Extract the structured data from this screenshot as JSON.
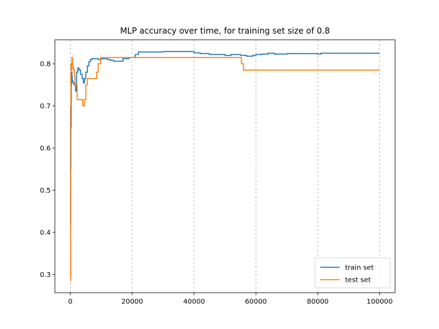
{
  "chart_data": {
    "type": "line",
    "title": "MLP accuracy over time, for training set size of 0.8",
    "xlabel": "",
    "ylabel": "",
    "xlim": [
      -5000,
      105000
    ],
    "ylim": [
      0.257,
      0.857
    ],
    "xticks": [
      0,
      20000,
      40000,
      60000,
      80000,
      100000
    ],
    "xtick_labels": [
      "0",
      "20000",
      "40000",
      "60000",
      "80000",
      "100000"
    ],
    "yticks": [
      0.3,
      0.4,
      0.5,
      0.6,
      0.7,
      0.8
    ],
    "ytick_labels": [
      "0.3",
      "0.4",
      "0.5",
      "0.6",
      "0.7",
      "0.8"
    ],
    "grid": "x-dashed",
    "legend": "lower-right",
    "series": [
      {
        "name": "train set",
        "color": "#1f77b4",
        "step": true,
        "points": [
          [
            0,
            0.42
          ],
          [
            100,
            0.7
          ],
          [
            200,
            0.65
          ],
          [
            300,
            0.75
          ],
          [
            400,
            0.78
          ],
          [
            500,
            0.77
          ],
          [
            600,
            0.76
          ],
          [
            800,
            0.755
          ],
          [
            1200,
            0.75
          ],
          [
            1700,
            0.735
          ],
          [
            2000,
            0.78
          ],
          [
            2400,
            0.79
          ],
          [
            2800,
            0.785
          ],
          [
            3300,
            0.775
          ],
          [
            3800,
            0.765
          ],
          [
            4200,
            0.755
          ],
          [
            4600,
            0.765
          ],
          [
            5000,
            0.78
          ],
          [
            5500,
            0.795
          ],
          [
            6000,
            0.805
          ],
          [
            6500,
            0.81
          ],
          [
            7000,
            0.812
          ],
          [
            9000,
            0.81
          ],
          [
            10000,
            0.812
          ],
          [
            12000,
            0.81
          ],
          [
            13000,
            0.808
          ],
          [
            14000,
            0.806
          ],
          [
            16000,
            0.806
          ],
          [
            17000,
            0.812
          ],
          [
            19000,
            0.815
          ],
          [
            21000,
            0.822
          ],
          [
            22000,
            0.828
          ],
          [
            30000,
            0.829
          ],
          [
            39000,
            0.829
          ],
          [
            40000,
            0.826
          ],
          [
            42000,
            0.824
          ],
          [
            45000,
            0.822
          ],
          [
            50000,
            0.82
          ],
          [
            52000,
            0.822
          ],
          [
            55000,
            0.82
          ],
          [
            57000,
            0.818
          ],
          [
            59000,
            0.82
          ],
          [
            60000,
            0.822
          ],
          [
            62000,
            0.823
          ],
          [
            64000,
            0.825
          ],
          [
            66000,
            0.823
          ],
          [
            70000,
            0.824
          ],
          [
            80000,
            0.823
          ],
          [
            81000,
            0.825
          ],
          [
            100000,
            0.825
          ]
        ]
      },
      {
        "name": "test set",
        "color": "#ff7f0e",
        "step": true,
        "points": [
          [
            0,
            0.285
          ],
          [
            100,
            0.55
          ],
          [
            200,
            0.8
          ],
          [
            300,
            0.795
          ],
          [
            400,
            0.785
          ],
          [
            500,
            0.815
          ],
          [
            700,
            0.8
          ],
          [
            900,
            0.79
          ],
          [
            1100,
            0.785
          ],
          [
            1300,
            0.77
          ],
          [
            1500,
            0.75
          ],
          [
            2200,
            0.715
          ],
          [
            4000,
            0.7
          ],
          [
            4500,
            0.715
          ],
          [
            5000,
            0.75
          ],
          [
            5500,
            0.765
          ],
          [
            6000,
            0.765
          ],
          [
            8500,
            0.78
          ],
          [
            9000,
            0.8
          ],
          [
            9800,
            0.815
          ],
          [
            55000,
            0.815
          ],
          [
            55300,
            0.8
          ],
          [
            56000,
            0.785
          ],
          [
            100000,
            0.785
          ]
        ]
      }
    ]
  }
}
